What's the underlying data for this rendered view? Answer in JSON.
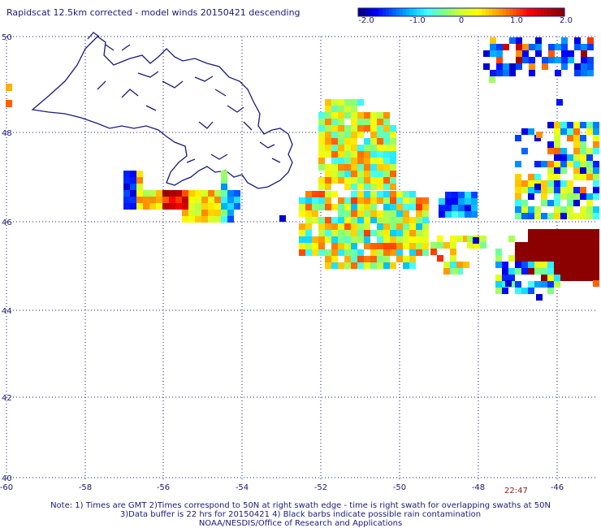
{
  "title": "Rapidscat 12.5km corrected - model winds 20150421 descending",
  "colorbar": {
    "labels": [
      "-2.0",
      "-1.0",
      "0",
      "1.0",
      "2.0"
    ],
    "colors": [
      "#0000a0",
      "#0000ff",
      "#00a0ff",
      "#00ffff",
      "#80ff80",
      "#ffff00",
      "#ff8000",
      "#ff0000",
      "#8b0000"
    ]
  },
  "axes": {
    "lon_labels": [
      "-60",
      "-58",
      "-56",
      "-54",
      "-52",
      "-50",
      "-48",
      "-46"
    ],
    "lat_labels": [
      "50",
      "48",
      "46",
      "44",
      "42",
      "40"
    ]
  },
  "time_label": "22:47",
  "notes": [
    "Note: 1) Times are GMT 2)Times correspond to 50N at right swath edge - time is right swath for overlapping swaths at 50N",
    "3)Data buffer is 22 hrs for 20150421 4) Black barbs indicate possible rain contamination",
    "NOAA/NESDIS/Office of Research and Applications"
  ],
  "legend_swatches": [
    "#ffb000",
    "#ff6000"
  ]
}
